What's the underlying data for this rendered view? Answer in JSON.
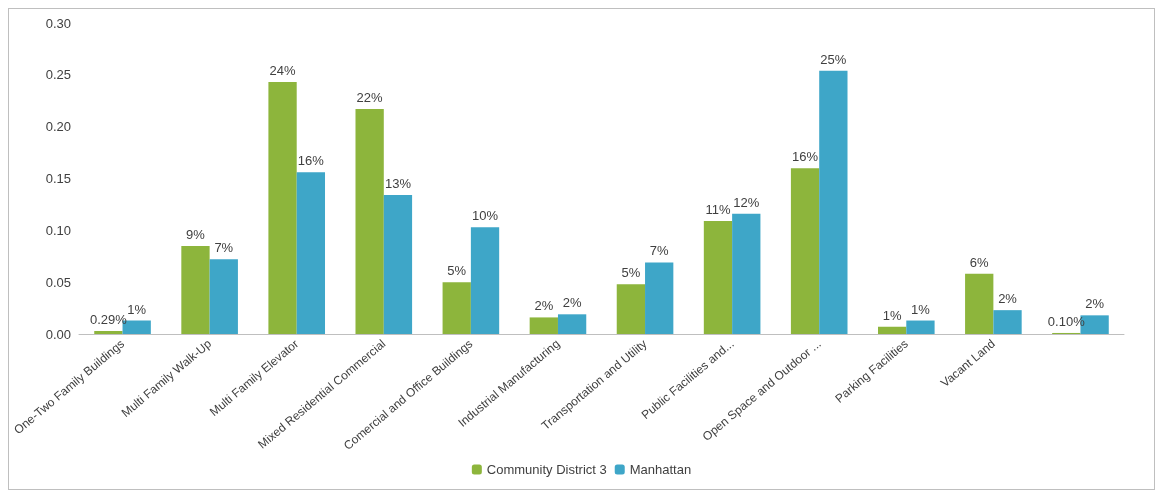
{
  "chart_data": {
    "type": "bar",
    "categories": [
      "One-Two Family Buildings",
      "Multi Family Walk-Up",
      "Multi Family Elevator",
      "Mixed Residential Commercial",
      "Comercial and Office Buildings",
      "Industrial Manufacturing",
      "Transportation and Utility",
      "Public Facilities and...",
      "Open Space and Outdoor ...",
      "Parking Facilities",
      "Vacant Land",
      null
    ],
    "series": [
      {
        "name": "Community District 3",
        "color": "#8db53c",
        "values": [
          0.0029,
          0.085,
          0.243,
          0.217,
          0.05,
          0.016,
          0.048,
          0.109,
          0.16,
          0.007,
          0.058,
          0.001
        ],
        "value_labels": [
          "0.29%",
          "9%",
          "24%",
          "22%",
          "5%",
          "2%",
          "5%",
          "11%",
          "16%",
          "1%",
          "6%",
          "0.10%"
        ]
      },
      {
        "name": "Manhattan",
        "color": "#3ea6c8",
        "values": [
          0.013,
          0.072,
          0.156,
          0.134,
          0.103,
          0.019,
          0.069,
          0.116,
          0.254,
          0.013,
          0.023,
          0.018
        ],
        "value_labels": [
          "1%",
          "7%",
          "16%",
          "13%",
          "10%",
          "2%",
          "7%",
          "12%",
          "25%",
          "1%",
          "2%",
          "2%"
        ]
      }
    ],
    "ylim": [
      0,
      0.3
    ],
    "yticks": [
      {
        "value": 0,
        "label": "0.00"
      },
      {
        "value": 0.05,
        "label": "0.05"
      },
      {
        "value": 0.1,
        "label": "0.10"
      },
      {
        "value": 0.15,
        "label": "0.15"
      },
      {
        "value": 0.2,
        "label": "0.20"
      },
      {
        "value": 0.25,
        "label": "0.25"
      },
      {
        "value": 0.3,
        "label": "0.30"
      }
    ],
    "legend": "bottom",
    "grid": false
  }
}
